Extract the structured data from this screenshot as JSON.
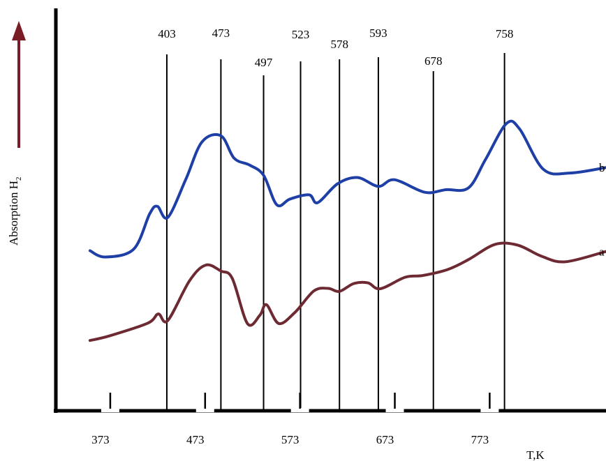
{
  "chart_data": {
    "type": "line",
    "title": "",
    "xlabel": "T,K",
    "ylabel": "Absorption H",
    "ylabel_subscript": "2",
    "x_ticks": [
      373,
      473,
      573,
      673,
      773
    ],
    "xlim": [
      323,
      903
    ],
    "ylim": [
      0,
      1
    ],
    "grid": false,
    "peak_lines": [
      {
        "label": "403",
        "x": 440
      },
      {
        "label": "473",
        "x": 497
      },
      {
        "label": "497",
        "x": 542
      },
      {
        "label": "523",
        "x": 581
      },
      {
        "label": "578",
        "x": 622
      },
      {
        "label": "593",
        "x": 663
      },
      {
        "label": "678",
        "x": 721
      },
      {
        "label": "758",
        "x": 796
      }
    ],
    "series": [
      {
        "name": "b",
        "color": "#1e3fa6",
        "points": [
          [
            359,
            0.435
          ],
          [
            375,
            0.418
          ],
          [
            405,
            0.439
          ],
          [
            422,
            0.535
          ],
          [
            430,
            0.555
          ],
          [
            441,
            0.525
          ],
          [
            460,
            0.628
          ],
          [
            477,
            0.729
          ],
          [
            497,
            0.746
          ],
          [
            511,
            0.685
          ],
          [
            527,
            0.667
          ],
          [
            542,
            0.639
          ],
          [
            556,
            0.559
          ],
          [
            570,
            0.575
          ],
          [
            590,
            0.586
          ],
          [
            599,
            0.565
          ],
          [
            620,
            0.616
          ],
          [
            641,
            0.633
          ],
          [
            663,
            0.609
          ],
          [
            680,
            0.627
          ],
          [
            712,
            0.593
          ],
          [
            734,
            0.6
          ],
          [
            758,
            0.605
          ],
          [
            776,
            0.682
          ],
          [
            798,
            0.779
          ],
          [
            812,
            0.764
          ],
          [
            837,
            0.655
          ],
          [
            865,
            0.645
          ],
          [
            903,
            0.66
          ]
        ]
      },
      {
        "name": "a",
        "color": "#6e2a33",
        "points": [
          [
            359,
            0.192
          ],
          [
            380,
            0.205
          ],
          [
            420,
            0.239
          ],
          [
            431,
            0.264
          ],
          [
            441,
            0.246
          ],
          [
            464,
            0.354
          ],
          [
            481,
            0.396
          ],
          [
            497,
            0.38
          ],
          [
            509,
            0.36
          ],
          [
            525,
            0.238
          ],
          [
            538,
            0.26
          ],
          [
            545,
            0.289
          ],
          [
            558,
            0.238
          ],
          [
            575,
            0.268
          ],
          [
            595,
            0.326
          ],
          [
            610,
            0.333
          ],
          [
            622,
            0.325
          ],
          [
            637,
            0.346
          ],
          [
            652,
            0.348
          ],
          [
            665,
            0.332
          ],
          [
            691,
            0.363
          ],
          [
            710,
            0.368
          ],
          [
            736,
            0.384
          ],
          [
            758,
            0.411
          ],
          [
            786,
            0.452
          ],
          [
            810,
            0.45
          ],
          [
            835,
            0.42
          ],
          [
            860,
            0.405
          ],
          [
            903,
            0.433
          ]
        ]
      }
    ]
  }
}
